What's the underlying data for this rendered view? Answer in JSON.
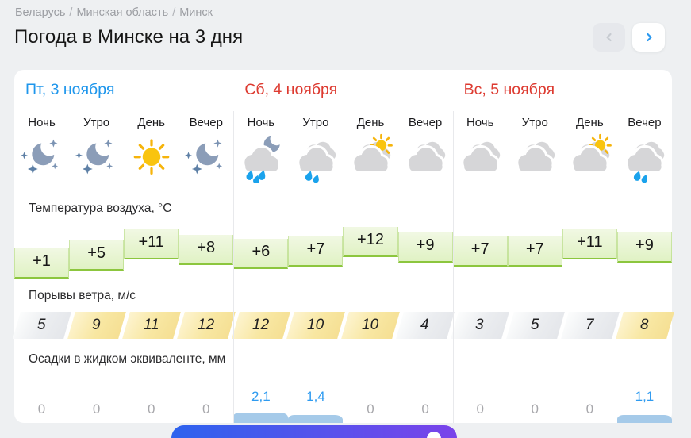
{
  "breadcrumb": {
    "items": [
      "Беларусь",
      "Минская область",
      "Минск"
    ],
    "separator": "/"
  },
  "page_title": "Погода в Минске на 3 дня",
  "nav": {
    "prev_icon": "chevron-left",
    "next_icon": "chevron-right",
    "prev_enabled": false,
    "next_enabled": true
  },
  "labels": {
    "temperature": "Температура воздуха, °C",
    "wind": "Порывы ветра, м/с",
    "precipitation": "Осадки в жидком эквиваленте, мм"
  },
  "days": [
    {
      "title": "Пт, 3 ноября",
      "title_color": "#1e96ec",
      "periods": [
        "Ночь",
        "Утро",
        "День",
        "Вечер"
      ],
      "icons": [
        "moon-stars",
        "moon-stars",
        "sun",
        "moon-stars"
      ],
      "temps": {
        "labels": [
          "+1",
          "+5",
          "+11",
          "+8"
        ],
        "values": [
          1,
          5,
          11,
          8
        ]
      },
      "wind": [
        5,
        9,
        11,
        12
      ],
      "precip": {
        "labels": [
          "0",
          "0",
          "0",
          "0"
        ],
        "values": [
          0,
          0,
          0,
          0
        ]
      }
    },
    {
      "title": "Сб, 4 ноября",
      "title_color": "#dd3a30",
      "periods": [
        "Ночь",
        "Утро",
        "День",
        "Вечер"
      ],
      "icons": [
        "cloud-moon-rain",
        "cloud-rain",
        "cloud-sun",
        "cloud"
      ],
      "temps": {
        "labels": [
          "+6",
          "+7",
          "+12",
          "+9"
        ],
        "values": [
          6,
          7,
          12,
          9
        ]
      },
      "wind": [
        12,
        10,
        10,
        4
      ],
      "precip": {
        "labels": [
          "2,1",
          "1,4",
          "0",
          "0"
        ],
        "values": [
          2.1,
          1.4,
          0,
          0
        ]
      }
    },
    {
      "title": "Вс, 5 ноября",
      "title_color": "#dd3a30",
      "periods": [
        "Ночь",
        "Утро",
        "День",
        "Вечер"
      ],
      "icons": [
        "cloud",
        "cloud",
        "cloud-sun",
        "cloud-rain"
      ],
      "temps": {
        "labels": [
          "+7",
          "+7",
          "+11",
          "+9"
        ],
        "values": [
          7,
          7,
          11,
          9
        ]
      },
      "wind": [
        3,
        5,
        7,
        8
      ],
      "precip": {
        "labels": [
          "0",
          "0",
          "0",
          "1,1"
        ],
        "values": [
          0,
          0,
          0,
          1.1
        ]
      }
    }
  ],
  "wind_highlight_threshold": 8,
  "colors": {
    "page_background": "#eef0f2",
    "card_background": "#ffffff",
    "accent_blue": "#2196f3",
    "day_blue": "#1e96ec",
    "day_red": "#dd3a30",
    "temp_fill": "#e6f4cd",
    "temp_border": "#8cc63e",
    "wind_yellow": "#f8e7a2",
    "wind_gray": "#e8eaee",
    "precip_bar": "#a5cae9",
    "precip_value_blue": "#2f9bf0",
    "banner_gradient_from": "#2d63ee",
    "banner_gradient_to": "#7a43ea"
  }
}
